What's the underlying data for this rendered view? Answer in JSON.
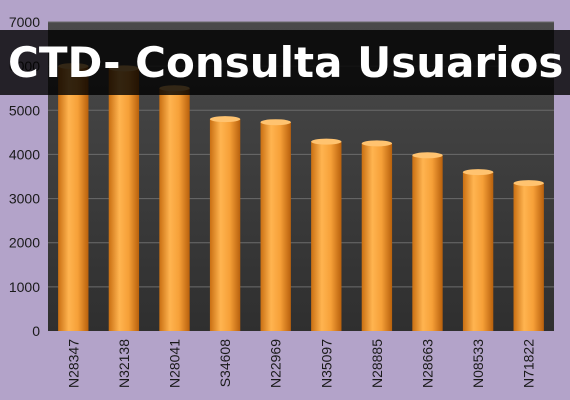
{
  "banner": {
    "title": "CTD- Consulta Usuarios"
  },
  "chart_data": {
    "type": "bar",
    "title": "",
    "xlabel": "",
    "ylabel": "",
    "categories": [
      "N28347",
      "N32138",
      "N28041",
      "S34608",
      "N22969",
      "N35097",
      "N28885",
      "N28663",
      "N08533",
      "N71822"
    ],
    "values": [
      6000,
      5950,
      5500,
      4800,
      4730,
      4290,
      4250,
      3980,
      3600,
      3350
    ],
    "ylim": [
      0,
      7000
    ],
    "yticks": [
      0,
      1000,
      2000,
      3000,
      4000,
      5000,
      6000,
      7000
    ],
    "grid": true,
    "legend": "none"
  },
  "colors": {
    "page_background": "#b3a3c9",
    "plot_background": "#3d3d3d",
    "bar_fill": "#f39a2e",
    "gridline": "#6b6b6b",
    "tick_label": "#1a1a1a"
  }
}
